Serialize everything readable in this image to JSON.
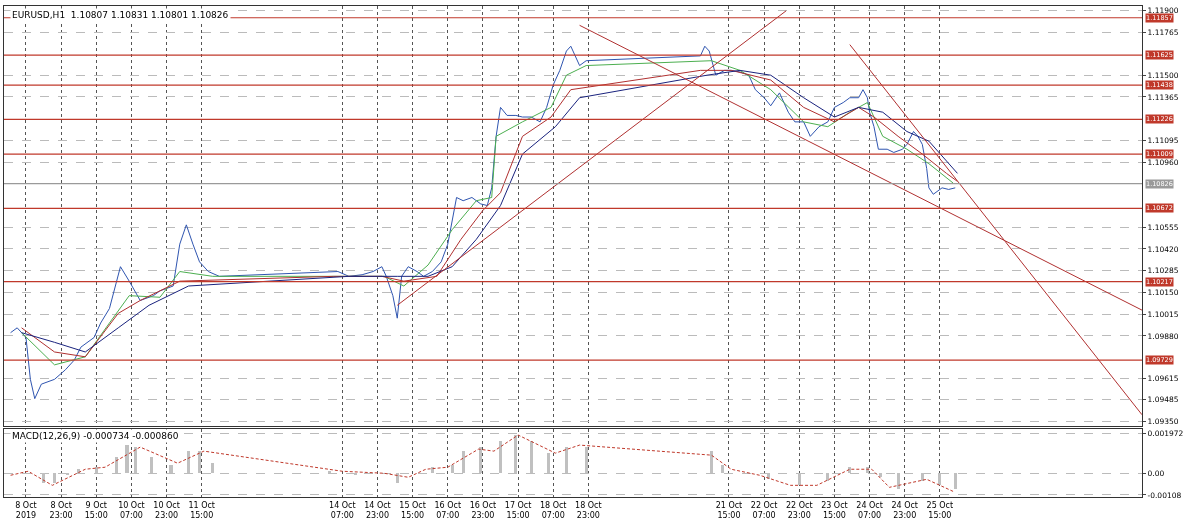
{
  "chart_data": [
    {
      "type": "line",
      "title": "EURUSD,H1  1.10807 1.10831 1.10801 1.10826",
      "xlim": [
        "2019-10-07T21:00",
        "2019-10-29T11:00"
      ],
      "ylim": [
        1.0932,
        1.1193
      ],
      "xticks": [
        {
          "value": "2019-10-08T07:00",
          "label": null
        },
        {
          "value": "2019-10-08T23:00",
          "label": null
        },
        {
          "value": "2019-10-09T15:00",
          "label": null
        },
        {
          "value": "2019-10-10T07:00",
          "label": null
        },
        {
          "value": "2019-10-10T23:00",
          "label": null
        },
        {
          "value": "2019-10-11T15:00",
          "label": null
        },
        {
          "value": "2019-10-14T07:00",
          "label": null
        },
        {
          "value": "2019-10-14T23:00",
          "label": null
        },
        {
          "value": "2019-10-15T15:00",
          "label": null
        },
        {
          "value": "2019-10-16T07:00",
          "label": null
        },
        {
          "value": "2019-10-16T23:00",
          "label": null
        },
        {
          "value": "2019-10-17T15:00",
          "label": null
        },
        {
          "value": "2019-10-18T07:00",
          "label": null
        },
        {
          "value": "2019-10-18T23:00",
          "label": null
        },
        {
          "value": "2019-10-21T15:00",
          "label": null
        },
        {
          "value": "2019-10-22T07:00",
          "label": null
        },
        {
          "value": "2019-10-22T23:00",
          "label": null
        },
        {
          "value": "2019-10-23T15:00",
          "label": null
        },
        {
          "value": "2019-10-24T07:00",
          "label": null
        },
        {
          "value": "2019-10-24T23:00",
          "label": null
        },
        {
          "value": "2019-10-25T15:00",
          "label": null
        }
      ],
      "yticks": [
        {
          "value": 1.119,
          "label": "1.11900"
        },
        {
          "value": 1.11765,
          "label": "1.11765"
        },
        {
          "value": 1.115,
          "label": "1.11500"
        },
        {
          "value": 1.11365,
          "label": "1.11365"
        },
        {
          "value": 1.11095,
          "label": "1.11095"
        },
        {
          "value": 1.1096,
          "label": "1.10960"
        },
        {
          "value": 1.10555,
          "label": "1.10555"
        },
        {
          "value": 1.1042,
          "label": "1.10420"
        },
        {
          "value": 1.10285,
          "label": "1.10285"
        },
        {
          "value": 1.1015,
          "label": "1.10150"
        },
        {
          "value": 1.10015,
          "label": "1.10015"
        },
        {
          "value": 1.0988,
          "label": "1.09880"
        },
        {
          "value": 1.09615,
          "label": "1.09615"
        },
        {
          "value": 1.09485,
          "label": "1.09485"
        },
        {
          "value": 1.0935,
          "label": "1.09350"
        }
      ],
      "grid": true,
      "tick_labels": "y",
      "marker": "none",
      "ref_lines": [
        {
          "axis": "y",
          "value": 1.11857,
          "label": "1.11857",
          "color": "#c0392b"
        },
        {
          "axis": "y",
          "value": 1.11625,
          "label": "1.11625",
          "color": "#c0392b"
        },
        {
          "axis": "y",
          "value": 1.11438,
          "label": "1.11438",
          "color": "#c0392b"
        },
        {
          "axis": "y",
          "value": 1.11226,
          "label": "1.11226",
          "color": "#c0392b"
        },
        {
          "axis": "y",
          "value": 1.11009,
          "label": "1.11009",
          "color": "#c0392b"
        },
        {
          "axis": "y",
          "value": 1.10826,
          "label": "1.10826",
          "color": "#9a9a9a"
        },
        {
          "axis": "y",
          "value": 1.10672,
          "label": "1.10672",
          "color": "#c0392b"
        },
        {
          "axis": "y",
          "value": 1.10217,
          "label": "1.10217",
          "color": "#c0392b"
        },
        {
          "axis": "y",
          "value": 1.09729,
          "label": "1.09729",
          "color": "#c0392b"
        }
      ],
      "series": [
        {
          "color": "#2f55b0",
          "x": [
            "2019-10-08T00:00",
            "2019-10-08T03:00",
            "2019-10-08T07:00",
            "2019-10-08T09:00",
            "2019-10-08T11:00",
            "2019-10-08T14:00",
            "2019-10-08T20:00",
            "2019-10-09T01:00",
            "2019-10-09T05:00",
            "2019-10-09T08:00",
            "2019-10-09T14:00",
            "2019-10-09T17:00",
            "2019-10-09T21:00",
            "2019-10-10T02:00",
            "2019-10-10T06:00",
            "2019-10-10T11:00",
            "2019-10-10T17:00",
            "2019-10-10T20:00",
            "2019-10-11T02:00",
            "2019-10-11T05:00",
            "2019-10-11T08:00",
            "2019-10-11T11:00",
            "2019-10-11T14:00",
            "2019-10-11T18:00",
            "2019-10-11T23:00",
            "2019-10-14T05:00",
            "2019-10-14T10:00",
            "2019-10-14T16:00",
            "2019-10-14T21:00",
            "2019-10-15T01:00",
            "2019-10-15T03:00",
            "2019-10-15T06:00",
            "2019-10-15T08:00",
            "2019-10-15T10:00",
            "2019-10-15T13:00",
            "2019-10-15T17:00",
            "2019-10-15T20:00",
            "2019-10-16T00:00",
            "2019-10-16T04:00",
            "2019-10-16T07:00",
            "2019-10-16T11:00",
            "2019-10-16T14:00",
            "2019-10-16T18:00",
            "2019-10-16T22:00",
            "2019-10-17T01:00",
            "2019-10-17T03:00",
            "2019-10-17T05:00",
            "2019-10-17T07:00",
            "2019-10-17T10:00",
            "2019-10-17T14:00",
            "2019-10-17T17:00",
            "2019-10-17T21:00",
            "2019-10-18T01:00",
            "2019-10-18T04:00",
            "2019-10-18T07:00",
            "2019-10-18T10:00",
            "2019-10-18T13:00",
            "2019-10-18T15:00",
            "2019-10-18T19:00",
            "2019-10-18T22:00",
            "2019-10-21T02:00",
            "2019-10-21T04:00",
            "2019-10-21T06:00",
            "2019-10-21T09:00",
            "2019-10-21T13:00",
            "2019-10-21T16:00",
            "2019-10-21T20:00",
            "2019-10-22T00:00",
            "2019-10-22T03:00",
            "2019-10-22T07:00",
            "2019-10-22T10:00",
            "2019-10-22T14:00",
            "2019-10-22T18:00",
            "2019-10-22T21:00",
            "2019-10-23T01:00",
            "2019-10-23T04:00",
            "2019-10-23T08:00",
            "2019-10-23T12:00",
            "2019-10-23T15:00",
            "2019-10-23T19:00",
            "2019-10-23T22:00",
            "2019-10-24T02:00",
            "2019-10-24T04:00",
            "2019-10-24T06:00",
            "2019-10-24T07:00",
            "2019-10-24T09:00",
            "2019-10-24T11:00",
            "2019-10-24T15:00",
            "2019-10-24T18:00",
            "2019-10-24T22:00",
            "2019-10-25T00:00",
            "2019-10-25T03:00",
            "2019-10-25T05:00",
            "2019-10-25T07:00",
            "2019-10-25T09:00",
            "2019-10-25T10:00",
            "2019-10-25T12:00",
            "2019-10-25T16:00",
            "2019-10-25T19:00",
            "2019-10-25T22:00"
          ],
          "values": [
            1.099,
            1.0993,
            1.0987,
            1.0961,
            1.0949,
            1.0958,
            1.0961,
            1.0967,
            1.0973,
            1.0981,
            1.0987,
            1.0996,
            1.1005,
            1.1031,
            1.1022,
            1.101,
            1.1013,
            1.1016,
            1.1019,
            1.1045,
            1.1057,
            1.1045,
            1.1034,
            1.1028,
            1.1025,
            1.1028,
            1.1025,
            1.1026,
            1.1028,
            1.1031,
            1.1025,
            1.1013,
            1.0999,
            1.1025,
            1.1031,
            1.1028,
            1.1025,
            1.1028,
            1.1034,
            1.1045,
            1.1074,
            1.1072,
            1.1074,
            1.107,
            1.1069,
            1.108,
            1.1112,
            1.113,
            1.1125,
            1.1125,
            1.1124,
            1.1124,
            1.1121,
            1.113,
            1.1144,
            1.1153,
            1.1165,
            1.1168,
            1.1156,
            1.1159,
            1.1162,
            1.1168,
            1.1165,
            1.115,
            1.1153,
            1.1153,
            1.1152,
            1.115,
            1.1141,
            1.1136,
            1.1131,
            1.1139,
            1.1127,
            1.1121,
            1.1121,
            1.1112,
            1.1118,
            1.1121,
            1.113,
            1.1133,
            1.1136,
            1.1136,
            1.1141,
            1.1136,
            1.1127,
            1.1118,
            1.1104,
            1.1104,
            1.1102,
            1.1104,
            1.1107,
            1.1115,
            1.1112,
            1.1107,
            1.1092,
            1.108,
            1.1076,
            1.108,
            1.1079,
            1.108
          ]
        },
        {
          "color": "#4caf50",
          "x": [
            "2019-10-08T05:00",
            "2019-10-08T20:00",
            "2019-10-09T10:00",
            "2019-10-09T21:00",
            "2019-10-10T06:00",
            "2019-10-10T20:00",
            "2019-10-11T05:00",
            "2019-10-11T20:00",
            "2019-10-14T10:00",
            "2019-10-15T02:00",
            "2019-10-15T11:00",
            "2019-10-15T22:00",
            "2019-10-16T09:00",
            "2019-10-16T20:00",
            "2019-10-17T03:00",
            "2019-10-17T05:00",
            "2019-10-17T17:00",
            "2019-10-18T06:00",
            "2019-10-18T13:00",
            "2019-10-18T22:00",
            "2019-10-21T07:00",
            "2019-10-21T20:00",
            "2019-10-22T10:00",
            "2019-10-23T01:00",
            "2019-10-23T12:00",
            "2019-10-23T22:00",
            "2019-10-24T06:00",
            "2019-10-24T13:00",
            "2019-10-25T00:00",
            "2019-10-25T10:00",
            "2019-10-25T21:00"
          ],
          "values": [
            1.099,
            1.097,
            1.0975,
            1.0996,
            1.1013,
            1.1012,
            1.1028,
            1.1025,
            1.1025,
            1.1025,
            1.1019,
            1.1032,
            1.1054,
            1.1072,
            1.1074,
            1.1112,
            1.1121,
            1.113,
            1.115,
            1.1156,
            1.1159,
            1.1153,
            1.1141,
            1.1121,
            1.1118,
            1.1127,
            1.1133,
            1.1112,
            1.1104,
            1.1095,
            1.1083
          ]
        },
        {
          "color": "#b03030",
          "x": [
            "2019-10-08T05:00",
            "2019-10-08T20:00",
            "2019-10-09T10:00",
            "2019-10-10T01:00",
            "2019-10-10T11:00",
            "2019-10-11T05:00",
            "2019-10-14T03:00",
            "2019-10-15T01:00",
            "2019-10-15T11:00",
            "2019-10-16T02:00",
            "2019-10-16T13:00",
            "2019-10-16T23:00",
            "2019-10-17T07:00",
            "2019-10-17T17:00",
            "2019-10-18T06:00",
            "2019-10-18T15:00",
            "2019-10-21T02:00",
            "2019-10-21T16:00",
            "2019-10-22T10:00",
            "2019-10-23T01:00",
            "2019-10-23T15:00",
            "2019-10-24T02:00",
            "2019-10-24T09:00",
            "2019-10-24T20:00",
            "2019-10-25T07:00",
            "2019-10-25T18:00",
            "2019-10-25T23:00"
          ],
          "values": [
            1.0993,
            1.0978,
            1.0975,
            1.1002,
            1.101,
            1.1022,
            1.1025,
            1.1025,
            1.1022,
            1.1025,
            1.1048,
            1.1066,
            1.1077,
            1.1112,
            1.1124,
            1.1141,
            1.1153,
            1.1153,
            1.1147,
            1.113,
            1.1121,
            1.113,
            1.1124,
            1.1112,
            1.1101,
            1.1089,
            1.1084
          ]
        },
        {
          "color": "#1a237e",
          "x": [
            "2019-10-08T05:00",
            "2019-10-08T20:00",
            "2019-10-09T10:00",
            "2019-10-10T01:00",
            "2019-10-10T15:00",
            "2019-10-11T09:00",
            "2019-10-14T10:00",
            "2019-10-15T08:00",
            "2019-10-15T22:00",
            "2019-10-16T09:00",
            "2019-10-16T20:00",
            "2019-10-17T07:00",
            "2019-10-17T17:00",
            "2019-10-18T08:00",
            "2019-10-18T19:00",
            "2019-10-21T05:00",
            "2019-10-21T20:00",
            "2019-10-22T10:00",
            "2019-10-23T01:00",
            "2019-10-23T15:00",
            "2019-10-24T02:00",
            "2019-10-24T13:00",
            "2019-10-25T00:00",
            "2019-10-25T10:00",
            "2019-10-25T23:00"
          ],
          "values": [
            1.099,
            1.0984,
            1.0978,
            1.0993,
            1.1007,
            1.1019,
            1.1025,
            1.1025,
            1.1025,
            1.1031,
            1.1048,
            1.1069,
            1.1101,
            1.1118,
            1.1136,
            1.115,
            1.1153,
            1.115,
            1.1136,
            1.1124,
            1.113,
            1.1127,
            1.1115,
            1.1109,
            1.1089
          ]
        },
        {
          "color": "#b03030",
          "x": [
            "2019-10-15T08:00",
            "2019-10-22T17:00"
          ],
          "values": [
            1.1007,
            1.119
          ]
        },
        {
          "color": "#b03030",
          "x": [
            "2019-10-18T19:00",
            "2019-10-29T11:00"
          ],
          "values": [
            1.1181,
            1.1004
          ]
        },
        {
          "color": "#b03030",
          "x": [
            "2019-10-23T22:00",
            "2019-10-29T11:00"
          ],
          "values": [
            1.1169,
            1.0939
          ]
        }
      ]
    },
    {
      "type": "bar",
      "title": "MACD(12,26,9) -0.000734 -0.000860",
      "xlim": [
        "2019-10-07T21:00",
        "2019-10-29T11:00"
      ],
      "ylim": [
        -0.00118,
        0.0022
      ],
      "xticks": [
        {
          "value": "2019-10-08T07:00",
          "label": "8 Oct 2019"
        },
        {
          "value": "2019-10-08T23:00",
          "label": "8 Oct 23:00"
        },
        {
          "value": "2019-10-09T15:00",
          "label": "9 Oct 15:00"
        },
        {
          "value": "2019-10-10T07:00",
          "label": "10 Oct 07:00"
        },
        {
          "value": "2019-10-10T23:00",
          "label": "10 Oct 23:00"
        },
        {
          "value": "2019-10-11T15:00",
          "label": "11 Oct 15:00"
        },
        {
          "value": "2019-10-14T07:00",
          "label": "14 Oct 07:00"
        },
        {
          "value": "2019-10-14T23:00",
          "label": "14 Oct 23:00"
        },
        {
          "value": "2019-10-15T15:00",
          "label": "15 Oct 15:00"
        },
        {
          "value": "2019-10-16T07:00",
          "label": "16 Oct 07:00"
        },
        {
          "value": "2019-10-16T23:00",
          "label": "16 Oct 23:00"
        },
        {
          "value": "2019-10-17T15:00",
          "label": "17 Oct 15:00"
        },
        {
          "value": "2019-10-18T07:00",
          "label": "18 Oct 07:00"
        },
        {
          "value": "2019-10-18T23:00",
          "label": "18 Oct 23:00"
        },
        {
          "value": "2019-10-21T15:00",
          "label": "21 Oct 15:00"
        },
        {
          "value": "2019-10-22T07:00",
          "label": "22 Oct 07:00"
        },
        {
          "value": "2019-10-22T23:00",
          "label": "22 Oct 23:00"
        },
        {
          "value": "2019-10-23T15:00",
          "label": "23 Oct 15:00"
        },
        {
          "value": "2019-10-24T07:00",
          "label": "24 Oct 07:00"
        },
        {
          "value": "2019-10-24T23:00",
          "label": "24 Oct 23:00"
        },
        {
          "value": "2019-10-25T15:00",
          "label": "25 Oct 15:00"
        }
      ],
      "yticks": [
        {
          "value": 0.001972,
          "label": "0.001972"
        },
        {
          "value": 0,
          "label": "0.00"
        },
        {
          "value": -0.00108,
          "label": "-0.00108"
        }
      ],
      "grid": true,
      "series": [
        {
          "color": "#c0c0c0",
          "x": [
            "2019-10-08T09:00",
            "2019-10-08T15:00",
            "2019-10-08T20:00",
            "2019-10-09T02:00",
            "2019-10-09T07:00",
            "2019-10-09T15:00",
            "2019-10-10T00:00",
            "2019-10-10T05:00",
            "2019-10-10T09:00",
            "2019-10-10T16:00",
            "2019-10-11T01:00",
            "2019-10-11T09:00",
            "2019-10-11T14:00",
            "2019-10-11T20:00",
            "2019-10-14T01:00",
            "2019-10-14T13:00",
            "2019-10-15T00:00",
            "2019-10-15T08:00",
            "2019-10-15T16:00",
            "2019-10-16T00:00",
            "2019-10-16T09:00",
            "2019-10-16T14:00",
            "2019-10-16T22:00",
            "2019-10-17T07:00",
            "2019-10-17T14:00",
            "2019-10-17T21:00",
            "2019-10-18T05:00",
            "2019-10-18T13:00",
            "2019-10-18T22:00",
            "2019-10-21T07:00",
            "2019-10-21T12:00",
            "2019-10-21T19:00",
            "2019-10-22T09:00",
            "2019-10-22T23:00",
            "2019-10-23T12:00",
            "2019-10-23T22:00",
            "2019-10-24T06:00",
            "2019-10-24T12:00",
            "2019-10-24T20:00",
            "2019-10-25T07:00",
            "2019-10-25T15:00",
            "2019-10-25T22:00"
          ],
          "values": [
            0,
            -0.0005,
            -0.0005,
            -0.0001,
            0.0002,
            0.0003,
            0.0008,
            0.0014,
            0.0013,
            0.0008,
            0.0004,
            0.0011,
            0.0011,
            0.0005,
            0.0001,
            -0.0001,
            0,
            -0.0005,
            0,
            0.0003,
            0.0004,
            0.0011,
            0.0013,
            0.0016,
            0.0019,
            0.0016,
            0.001,
            0.0013,
            0.0013,
            0.0011,
            0.0004,
            0,
            -0.0003,
            -0.0006,
            -0.0004,
            0.0003,
            0.0003,
            -0.0002,
            -0.0008,
            -0.0004,
            -0.0006,
            -0.0008
          ]
        },
        {
          "type": "line",
          "line_style": "dashed",
          "color": "#c0392b",
          "x": [
            "2019-10-08T00:00",
            "2019-10-08T08:00",
            "2019-10-08T19:00",
            "2019-10-09T10:00",
            "2019-10-09T19:00",
            "2019-10-10T11:00",
            "2019-10-11T04:00",
            "2019-10-11T16:00",
            "2019-10-14T07:00",
            "2019-10-15T02:00",
            "2019-10-15T13:00",
            "2019-10-15T21:00",
            "2019-10-16T07:00",
            "2019-10-16T21:00",
            "2019-10-17T04:00",
            "2019-10-17T15:00",
            "2019-10-18T08:00",
            "2019-10-18T19:00",
            "2019-10-21T07:00",
            "2019-10-21T16:00",
            "2019-10-22T05:00",
            "2019-10-22T19:00",
            "2019-10-23T07:00",
            "2019-10-23T22:00",
            "2019-10-24T08:00",
            "2019-10-24T16:00",
            "2019-10-25T09:00",
            "2019-10-25T21:00"
          ],
          "values": [
            -0.0001,
            0.0001,
            -0.0006,
            0.0002,
            0.0003,
            0.0013,
            0.0005,
            0.0011,
            0.0001,
            0,
            -0.0002,
            0.0002,
            0.0003,
            0.0012,
            0.0011,
            0.0019,
            0.001,
            0.0014,
            0.0009,
            0.0002,
            -0.0001,
            -0.0006,
            -0.0006,
            0.0002,
            0.0002,
            -0.0007,
            -0.0003,
            -0.0009
          ]
        }
      ]
    }
  ]
}
